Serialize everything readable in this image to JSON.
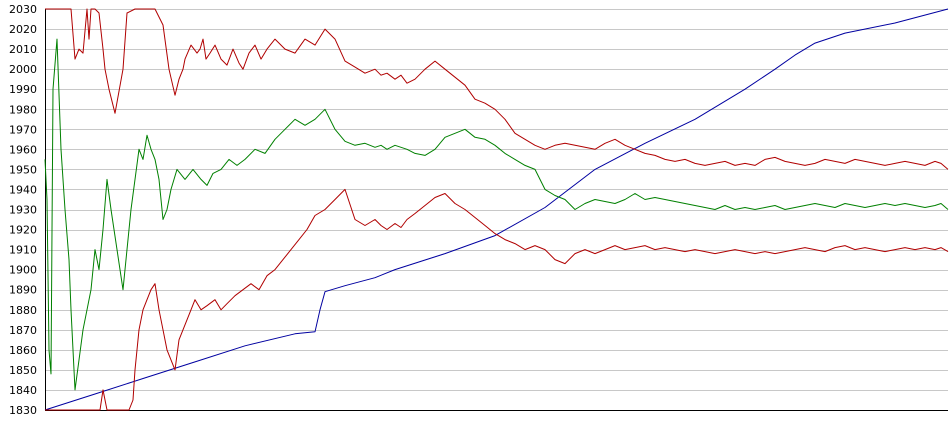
{
  "chart_data": {
    "type": "line",
    "title": "",
    "xlabel": "",
    "ylabel": "",
    "ylim": [
      1830,
      2030
    ],
    "yticks": [
      1830,
      1840,
      1850,
      1860,
      1870,
      1880,
      1890,
      1900,
      1910,
      1920,
      1930,
      1940,
      1950,
      1960,
      1970,
      1980,
      1990,
      2000,
      2010,
      2020,
      2030
    ],
    "grid": true,
    "legend": "none",
    "series": [
      {
        "color": "#0000a0",
        "x": [
          0,
          50,
          100,
          150,
          200,
          250,
          270,
          275,
          280,
          300,
          330,
          350,
          400,
          450,
          500,
          550,
          600,
          650,
          700,
          730,
          750,
          770,
          800,
          850,
          903
        ],
        "values": [
          1830,
          1838,
          1846,
          1854,
          1862,
          1868,
          1869,
          1880,
          1889,
          1892,
          1896,
          1900,
          1908,
          1917,
          1931,
          1950,
          1963,
          1975,
          1990,
          2000,
          2007,
          2013,
          2018,
          2023,
          2030
        ]
      },
      {
        "color": "#b00000",
        "x": [
          0,
          20,
          23,
          26,
          30,
          34,
          38,
          42,
          44,
          46,
          50,
          54,
          58,
          60,
          64,
          70,
          78,
          82,
          90,
          100,
          110,
          118,
          124,
          130,
          134,
          138,
          140,
          146,
          152,
          155,
          158,
          161,
          165,
          170,
          176,
          182,
          188,
          194,
          198,
          204,
          210,
          216,
          222,
          230,
          240,
          250,
          260,
          270,
          280,
          290,
          300,
          310,
          320,
          330,
          336,
          342,
          350,
          356,
          362,
          370,
          380,
          390,
          400,
          410,
          420,
          430,
          440,
          450,
          460,
          470,
          480,
          490,
          500,
          510,
          520,
          530,
          540,
          550,
          560,
          570,
          580,
          590,
          600,
          610,
          620,
          630,
          640,
          650,
          660,
          670,
          680,
          690,
          700,
          710,
          720,
          730,
          740,
          750,
          760,
          770,
          780,
          790,
          800,
          810,
          820,
          830,
          840,
          850,
          860,
          870,
          880,
          890,
          896,
          903
        ],
        "values": [
          2030,
          2030,
          2030,
          2030,
          2005,
          2010,
          2008,
          2030,
          2015,
          2030,
          2030,
          2028,
          2010,
          2000,
          1990,
          1978,
          2000,
          2028,
          2030,
          2030,
          2030,
          2022,
          2000,
          1987,
          1995,
          2000,
          2005,
          2012,
          2008,
          2010,
          2015,
          2005,
          2008,
          2012,
          2005,
          2002,
          2010,
          2003,
          2000,
          2008,
          2012,
          2005,
          2010,
          2015,
          2010,
          2008,
          2015,
          2012,
          2020,
          2015,
          2004,
          2001,
          1998,
          2000,
          1997,
          1998,
          1995,
          1997,
          1993,
          1995,
          2000,
          2004,
          2000,
          1996,
          1992,
          1985,
          1983,
          1980,
          1975,
          1968,
          1965,
          1962,
          1960,
          1962,
          1963,
          1962,
          1961,
          1960,
          1963,
          1965,
          1962,
          1960,
          1958,
          1957,
          1955,
          1954,
          1955,
          1953,
          1952,
          1953,
          1954,
          1952,
          1953,
          1952,
          1955,
          1956,
          1954,
          1953,
          1952,
          1953,
          1955,
          1954,
          1953,
          1955,
          1954,
          1953,
          1952,
          1953,
          1954,
          1953,
          1952,
          1954,
          1953,
          1950
        ]
      },
      {
        "color": "#008000",
        "x": [
          0,
          2,
          4,
          6,
          8,
          12,
          16,
          20,
          24,
          26,
          30,
          34,
          38,
          42,
          46,
          50,
          54,
          58,
          62,
          66,
          72,
          78,
          82,
          86,
          90,
          94,
          98,
          102,
          106,
          110,
          114,
          118,
          122,
          126,
          132,
          140,
          148,
          156,
          162,
          168,
          176,
          184,
          192,
          200,
          210,
          220,
          230,
          240,
          250,
          260,
          270,
          280,
          290,
          300,
          310,
          320,
          330,
          336,
          342,
          350,
          356,
          362,
          370,
          380,
          390,
          400,
          410,
          420,
          430,
          440,
          450,
          460,
          470,
          480,
          490,
          500,
          510,
          520,
          530,
          540,
          550,
          560,
          570,
          580,
          590,
          600,
          610,
          620,
          630,
          640,
          650,
          660,
          670,
          680,
          690,
          700,
          710,
          720,
          730,
          740,
          750,
          760,
          770,
          780,
          790,
          800,
          810,
          820,
          830,
          840,
          850,
          860,
          870,
          880,
          890,
          896,
          903
        ],
        "values": [
          1955,
          1935,
          1860,
          1848,
          1990,
          2015,
          1960,
          1930,
          1905,
          1880,
          1840,
          1855,
          1870,
          1880,
          1890,
          1910,
          1900,
          1920,
          1945,
          1930,
          1910,
          1890,
          1910,
          1930,
          1945,
          1960,
          1955,
          1967,
          1960,
          1955,
          1945,
          1925,
          1930,
          1940,
          1950,
          1945,
          1950,
          1945,
          1942,
          1948,
          1950,
          1955,
          1952,
          1955,
          1960,
          1958,
          1965,
          1970,
          1975,
          1972,
          1975,
          1980,
          1970,
          1964,
          1962,
          1963,
          1961,
          1962,
          1960,
          1962,
          1961,
          1960,
          1958,
          1957,
          1960,
          1966,
          1968,
          1970,
          1966,
          1965,
          1962,
          1958,
          1955,
          1952,
          1950,
          1940,
          1937,
          1935,
          1930,
          1933,
          1935,
          1934,
          1933,
          1935,
          1938,
          1935,
          1936,
          1935,
          1934,
          1933,
          1932,
          1931,
          1930,
          1932,
          1930,
          1931,
          1930,
          1931,
          1932,
          1930,
          1931,
          1932,
          1933,
          1932,
          1931,
          1933,
          1932,
          1931,
          1932,
          1933,
          1932,
          1933,
          1932,
          1931,
          1932,
          1933,
          1930
        ]
      },
      {
        "color": "#b00000",
        "x": [
          0,
          10,
          20,
          30,
          40,
          50,
          55,
          58,
          62,
          66,
          70,
          76,
          80,
          84,
          88,
          90,
          94,
          98,
          102,
          106,
          110,
          114,
          118,
          122,
          126,
          130,
          134,
          138,
          142,
          146,
          150,
          156,
          162,
          170,
          176,
          182,
          190,
          198,
          206,
          214,
          222,
          230,
          238,
          246,
          254,
          262,
          270,
          280,
          290,
          300,
          310,
          320,
          330,
          336,
          342,
          350,
          356,
          362,
          370,
          380,
          390,
          400,
          410,
          420,
          430,
          440,
          450,
          460,
          470,
          480,
          490,
          500,
          510,
          520,
          530,
          540,
          550,
          560,
          570,
          580,
          590,
          600,
          610,
          620,
          630,
          640,
          650,
          660,
          670,
          680,
          690,
          700,
          710,
          720,
          730,
          740,
          750,
          760,
          770,
          780,
          790,
          800,
          810,
          820,
          830,
          840,
          850,
          860,
          870,
          880,
          890,
          896,
          903
        ],
        "values": [
          1830,
          1830,
          1830,
          1830,
          1830,
          1830,
          1830,
          1840,
          1830,
          1830,
          1830,
          1830,
          1830,
          1830,
          1835,
          1850,
          1870,
          1880,
          1885,
          1890,
          1893,
          1880,
          1870,
          1860,
          1855,
          1850,
          1865,
          1870,
          1875,
          1880,
          1885,
          1880,
          1882,
          1885,
          1880,
          1883,
          1887,
          1890,
          1893,
          1890,
          1897,
          1900,
          1905,
          1910,
          1915,
          1920,
          1927,
          1930,
          1935,
          1940,
          1925,
          1922,
          1925,
          1922,
          1920,
          1923,
          1921,
          1925,
          1928,
          1932,
          1936,
          1938,
          1933,
          1930,
          1926,
          1922,
          1918,
          1915,
          1913,
          1910,
          1912,
          1910,
          1905,
          1903,
          1908,
          1910,
          1908,
          1910,
          1912,
          1910,
          1911,
          1912,
          1910,
          1911,
          1910,
          1909,
          1910,
          1909,
          1908,
          1909,
          1910,
          1909,
          1908,
          1909,
          1908,
          1909,
          1910,
          1911,
          1910,
          1909,
          1911,
          1912,
          1910,
          1911,
          1910,
          1909,
          1910,
          1911,
          1910,
          1911,
          1910,
          1911,
          1909
        ]
      }
    ]
  }
}
